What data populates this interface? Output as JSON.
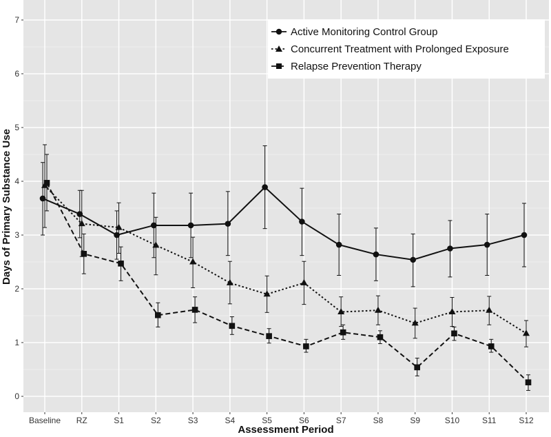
{
  "chart_data": {
    "type": "line",
    "title": "",
    "xlabel": "Assessment Period",
    "ylabel": "Days of Primary Substance Use",
    "ylim": [
      0,
      7
    ],
    "yticks": [
      0,
      1,
      2,
      3,
      4,
      5,
      6,
      7
    ],
    "categories": [
      "Baseline",
      "RZ",
      "S1",
      "S2",
      "S3",
      "S4",
      "S5",
      "S6",
      "S7",
      "S8",
      "S9",
      "S10",
      "S11",
      "S12"
    ],
    "grid": true,
    "legend_position": "top-right",
    "series": [
      {
        "name": "Active Monitoring Control Group",
        "marker": "circle",
        "line_style": "solid",
        "values": [
          3.68,
          3.39,
          3.0,
          3.18,
          3.18,
          3.21,
          3.89,
          3.25,
          2.82,
          2.64,
          2.54,
          2.75,
          2.82,
          3.0
        ],
        "err_low": [
          3.0,
          2.95,
          2.55,
          2.58,
          2.58,
          2.62,
          3.12,
          2.62,
          2.25,
          2.15,
          2.04,
          2.22,
          2.25,
          2.41
        ],
        "err_high": [
          4.35,
          3.83,
          3.45,
          3.78,
          3.78,
          3.81,
          4.66,
          3.87,
          3.39,
          3.13,
          3.02,
          3.27,
          3.39,
          3.59
        ]
      },
      {
        "name": "Concurrent Treatment with Prolonged Exposure",
        "marker": "triangle",
        "line_style": "dotted",
        "values": [
          3.92,
          3.21,
          3.14,
          2.81,
          2.5,
          2.11,
          1.9,
          2.11,
          1.57,
          1.6,
          1.36,
          1.57,
          1.6,
          1.17
        ],
        "err_low": [
          3.14,
          2.6,
          2.66,
          2.26,
          2.02,
          1.72,
          1.56,
          1.71,
          1.3,
          1.33,
          1.08,
          1.3,
          1.33,
          0.92
        ],
        "err_high": [
          4.68,
          3.83,
          3.6,
          3.33,
          2.96,
          2.51,
          2.24,
          2.51,
          1.85,
          1.87,
          1.64,
          1.84,
          1.86,
          1.41
        ]
      },
      {
        "name": "Relapse Prevention Therapy",
        "marker": "square",
        "line_style": "dashed",
        "values": [
          3.97,
          2.65,
          2.47,
          1.51,
          1.61,
          1.31,
          1.12,
          0.93,
          1.19,
          1.1,
          0.54,
          1.17,
          0.93,
          0.26
        ],
        "err_low": [
          3.45,
          2.28,
          2.15,
          1.29,
          1.37,
          1.15,
          0.99,
          0.82,
          1.06,
          0.98,
          0.38,
          1.04,
          0.82,
          0.11
        ],
        "err_high": [
          4.5,
          3.02,
          2.78,
          1.74,
          1.85,
          1.48,
          1.26,
          1.06,
          1.33,
          1.22,
          0.71,
          1.29,
          1.06,
          0.4
        ]
      }
    ]
  }
}
